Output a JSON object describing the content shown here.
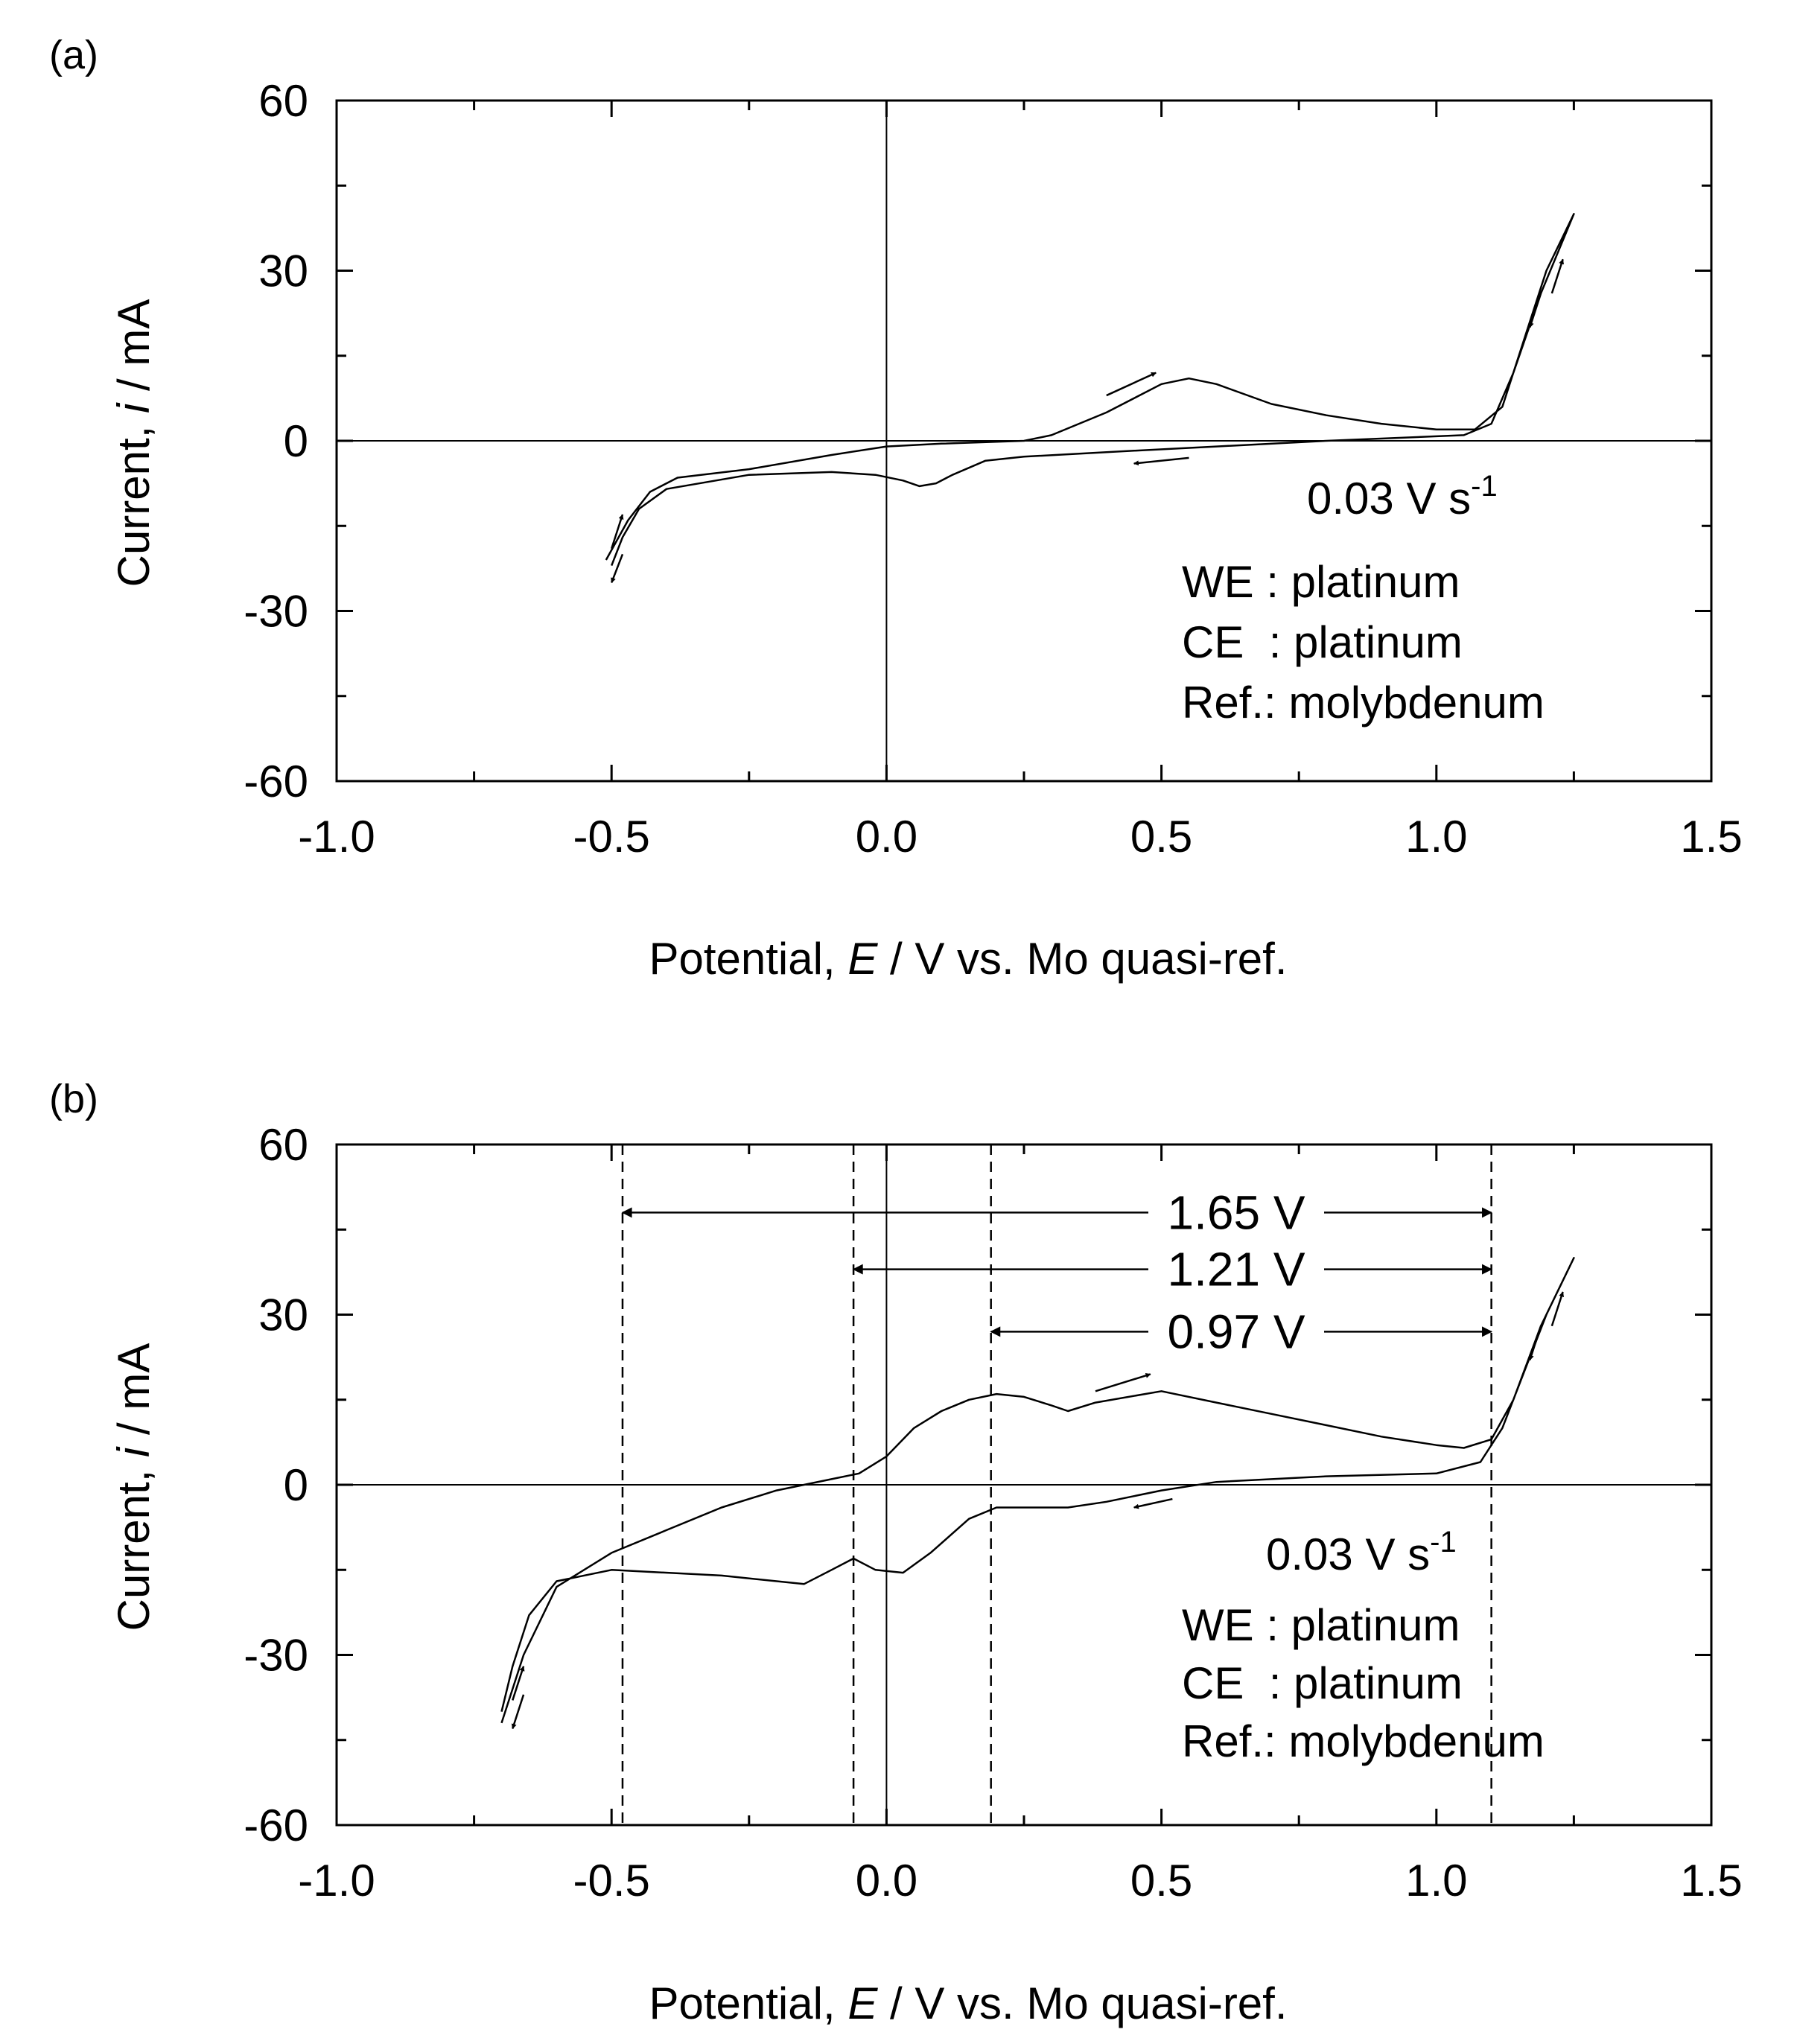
{
  "chart_data": [
    {
      "panel_label": "(a)",
      "type": "line",
      "xlabel": {
        "pre": "Potential, ",
        "italic": "E",
        "post": " / V vs. Mo quasi-ref."
      },
      "ylabel": {
        "pre": "Current, ",
        "italic": "i",
        "post": " / mA"
      },
      "xlim": [
        -1.0,
        1.5
      ],
      "ylim": [
        -60,
        60
      ],
      "xticks": [
        -1.0,
        -0.5,
        0.0,
        0.5,
        1.0,
        1.5
      ],
      "xtick_labels": [
        "-1.0",
        "-0.5",
        "0.0",
        "0.5",
        "1.0",
        "1.5"
      ],
      "yticks": [
        -60,
        -30,
        0,
        30,
        60
      ],
      "ytick_labels": [
        "-60",
        "-30",
        "0",
        "30",
        "60"
      ],
      "grid": false,
      "zero_lines": true,
      "annotation": {
        "base": "0.03 V s",
        "sup": "-1"
      },
      "legend_lines": [
        "WE : platinum",
        "CE  : platinum",
        "Ref.: molybdenum"
      ],
      "series": [
        {
          "values": [
            [
              -0.51,
              -21
            ],
            [
              -0.47,
              -14
            ],
            [
              -0.43,
              -9
            ],
            [
              -0.38,
              -6.5
            ],
            [
              -0.25,
              -5
            ],
            [
              -0.1,
              -2.5
            ],
            [
              0.0,
              -1
            ],
            [
              0.1,
              -0.5
            ],
            [
              0.25,
              0
            ],
            [
              0.3,
              1
            ],
            [
              0.4,
              5
            ],
            [
              0.5,
              10
            ],
            [
              0.55,
              11
            ],
            [
              0.6,
              10
            ],
            [
              0.7,
              6.5
            ],
            [
              0.8,
              4.5
            ],
            [
              0.9,
              3
            ],
            [
              1.0,
              2
            ],
            [
              1.07,
              2
            ],
            [
              1.12,
              6
            ],
            [
              1.16,
              18
            ],
            [
              1.2,
              30
            ],
            [
              1.25,
              40
            ],
            [
              1.19,
              26
            ],
            [
              1.14,
              12
            ],
            [
              1.1,
              3
            ],
            [
              1.05,
              1
            ],
            [
              0.8,
              0
            ],
            [
              0.6,
              -1
            ],
            [
              0.4,
              -2
            ],
            [
              0.25,
              -2.8
            ],
            [
              0.18,
              -3.5
            ],
            [
              0.12,
              -6
            ],
            [
              0.09,
              -7.5
            ],
            [
              0.06,
              -8
            ],
            [
              0.03,
              -7
            ],
            [
              -0.02,
              -6
            ],
            [
              -0.1,
              -5.5
            ],
            [
              -0.25,
              -6
            ],
            [
              -0.4,
              -8.5
            ],
            [
              -0.45,
              -12
            ],
            [
              -0.48,
              -17
            ],
            [
              -0.5,
              -22
            ]
          ]
        }
      ],
      "direction_arrows": [
        {
          "from": [
            0.4,
            8
          ],
          "to": [
            0.49,
            12
          ]
        },
        {
          "from": [
            0.55,
            -3
          ],
          "to": [
            0.45,
            -4
          ]
        },
        {
          "from": [
            1.19,
            26
          ],
          "to": [
            1.17,
            20
          ]
        },
        {
          "from": [
            1.21,
            26
          ],
          "to": [
            1.23,
            32
          ]
        },
        {
          "from": [
            -0.5,
            -19
          ],
          "to": [
            -0.48,
            -13
          ]
        },
        {
          "from": [
            -0.48,
            -20
          ],
          "to": [
            -0.5,
            -25
          ]
        }
      ],
      "vlines": [],
      "spans": []
    },
    {
      "panel_label": "(b)",
      "type": "line",
      "xlabel": {
        "pre": "Potential, ",
        "italic": "E",
        "post": " / V vs. Mo quasi-ref."
      },
      "ylabel": {
        "pre": "Current, ",
        "italic": "i",
        "post": " / mA"
      },
      "xlim": [
        -1.0,
        1.5
      ],
      "ylim": [
        -60,
        60
      ],
      "xticks": [
        -1.0,
        -0.5,
        0.0,
        0.5,
        1.0,
        1.5
      ],
      "xtick_labels": [
        "-1.0",
        "-0.5",
        "0.0",
        "0.5",
        "1.0",
        "1.5"
      ],
      "yticks": [
        -60,
        -30,
        0,
        30,
        60
      ],
      "ytick_labels": [
        "-60",
        "-30",
        "0",
        "30",
        "60"
      ],
      "grid": false,
      "zero_lines": true,
      "annotation": {
        "base": "0.03 V s",
        "sup": "-1"
      },
      "legend_lines": [
        "WE : platinum",
        "CE  : platinum",
        "Ref.: molybdenum"
      ],
      "series": [
        {
          "values": [
            [
              -0.7,
              -42
            ],
            [
              -0.66,
              -30
            ],
            [
              -0.6,
              -18
            ],
            [
              -0.5,
              -12
            ],
            [
              -0.4,
              -8
            ],
            [
              -0.3,
              -4
            ],
            [
              -0.2,
              -1
            ],
            [
              -0.1,
              1
            ],
            [
              -0.05,
              2
            ],
            [
              0.0,
              5
            ],
            [
              0.05,
              10
            ],
            [
              0.1,
              13
            ],
            [
              0.15,
              15
            ],
            [
              0.2,
              16
            ],
            [
              0.25,
              15.5
            ],
            [
              0.3,
              14
            ],
            [
              0.33,
              13
            ],
            [
              0.38,
              14.5
            ],
            [
              0.5,
              16.5
            ],
            [
              0.6,
              14.5
            ],
            [
              0.7,
              12.5
            ],
            [
              0.8,
              10.5
            ],
            [
              0.9,
              8.5
            ],
            [
              1.0,
              7
            ],
            [
              1.05,
              6.5
            ],
            [
              1.1,
              8
            ],
            [
              1.14,
              15
            ],
            [
              1.19,
              28
            ],
            [
              1.25,
              40
            ],
            [
              1.2,
              30
            ],
            [
              1.16,
              20
            ],
            [
              1.12,
              10
            ],
            [
              1.08,
              4
            ],
            [
              1.0,
              2
            ],
            [
              0.8,
              1.5
            ],
            [
              0.6,
              0.5
            ],
            [
              0.5,
              -1
            ],
            [
              0.4,
              -3
            ],
            [
              0.33,
              -4
            ],
            [
              0.27,
              -4
            ],
            [
              0.2,
              -4
            ],
            [
              0.15,
              -6
            ],
            [
              0.08,
              -12
            ],
            [
              0.03,
              -15.5
            ],
            [
              -0.02,
              -15
            ],
            [
              -0.06,
              -13
            ],
            [
              -0.1,
              -15
            ],
            [
              -0.15,
              -17.5
            ],
            [
              -0.3,
              -16
            ],
            [
              -0.5,
              -15
            ],
            [
              -0.6,
              -17
            ],
            [
              -0.65,
              -23
            ],
            [
              -0.68,
              -32
            ],
            [
              -0.7,
              -40
            ]
          ]
        }
      ],
      "direction_arrows": [
        {
          "from": [
            0.38,
            16.5
          ],
          "to": [
            0.48,
            19.5
          ]
        },
        {
          "from": [
            0.52,
            -2.5
          ],
          "to": [
            0.45,
            -4
          ]
        },
        {
          "from": [
            1.19,
            28
          ],
          "to": [
            1.17,
            22
          ]
        },
        {
          "from": [
            1.21,
            28
          ],
          "to": [
            1.23,
            34
          ]
        },
        {
          "from": [
            -0.68,
            -38
          ],
          "to": [
            -0.66,
            -32
          ]
        },
        {
          "from": [
            -0.66,
            -37
          ],
          "to": [
            -0.68,
            -43
          ]
        }
      ],
      "vlines": [
        -0.48,
        -0.06,
        0.19,
        1.1
      ],
      "spans": [
        {
          "label": "1.65 V",
          "from": -0.48,
          "to": 1.1,
          "y": 48
        },
        {
          "label": "1.21 V",
          "from": -0.06,
          "to": 1.1,
          "y": 38
        },
        {
          "label": "0.97 V",
          "from": 0.19,
          "to": 1.1,
          "y": 27
        }
      ]
    }
  ]
}
